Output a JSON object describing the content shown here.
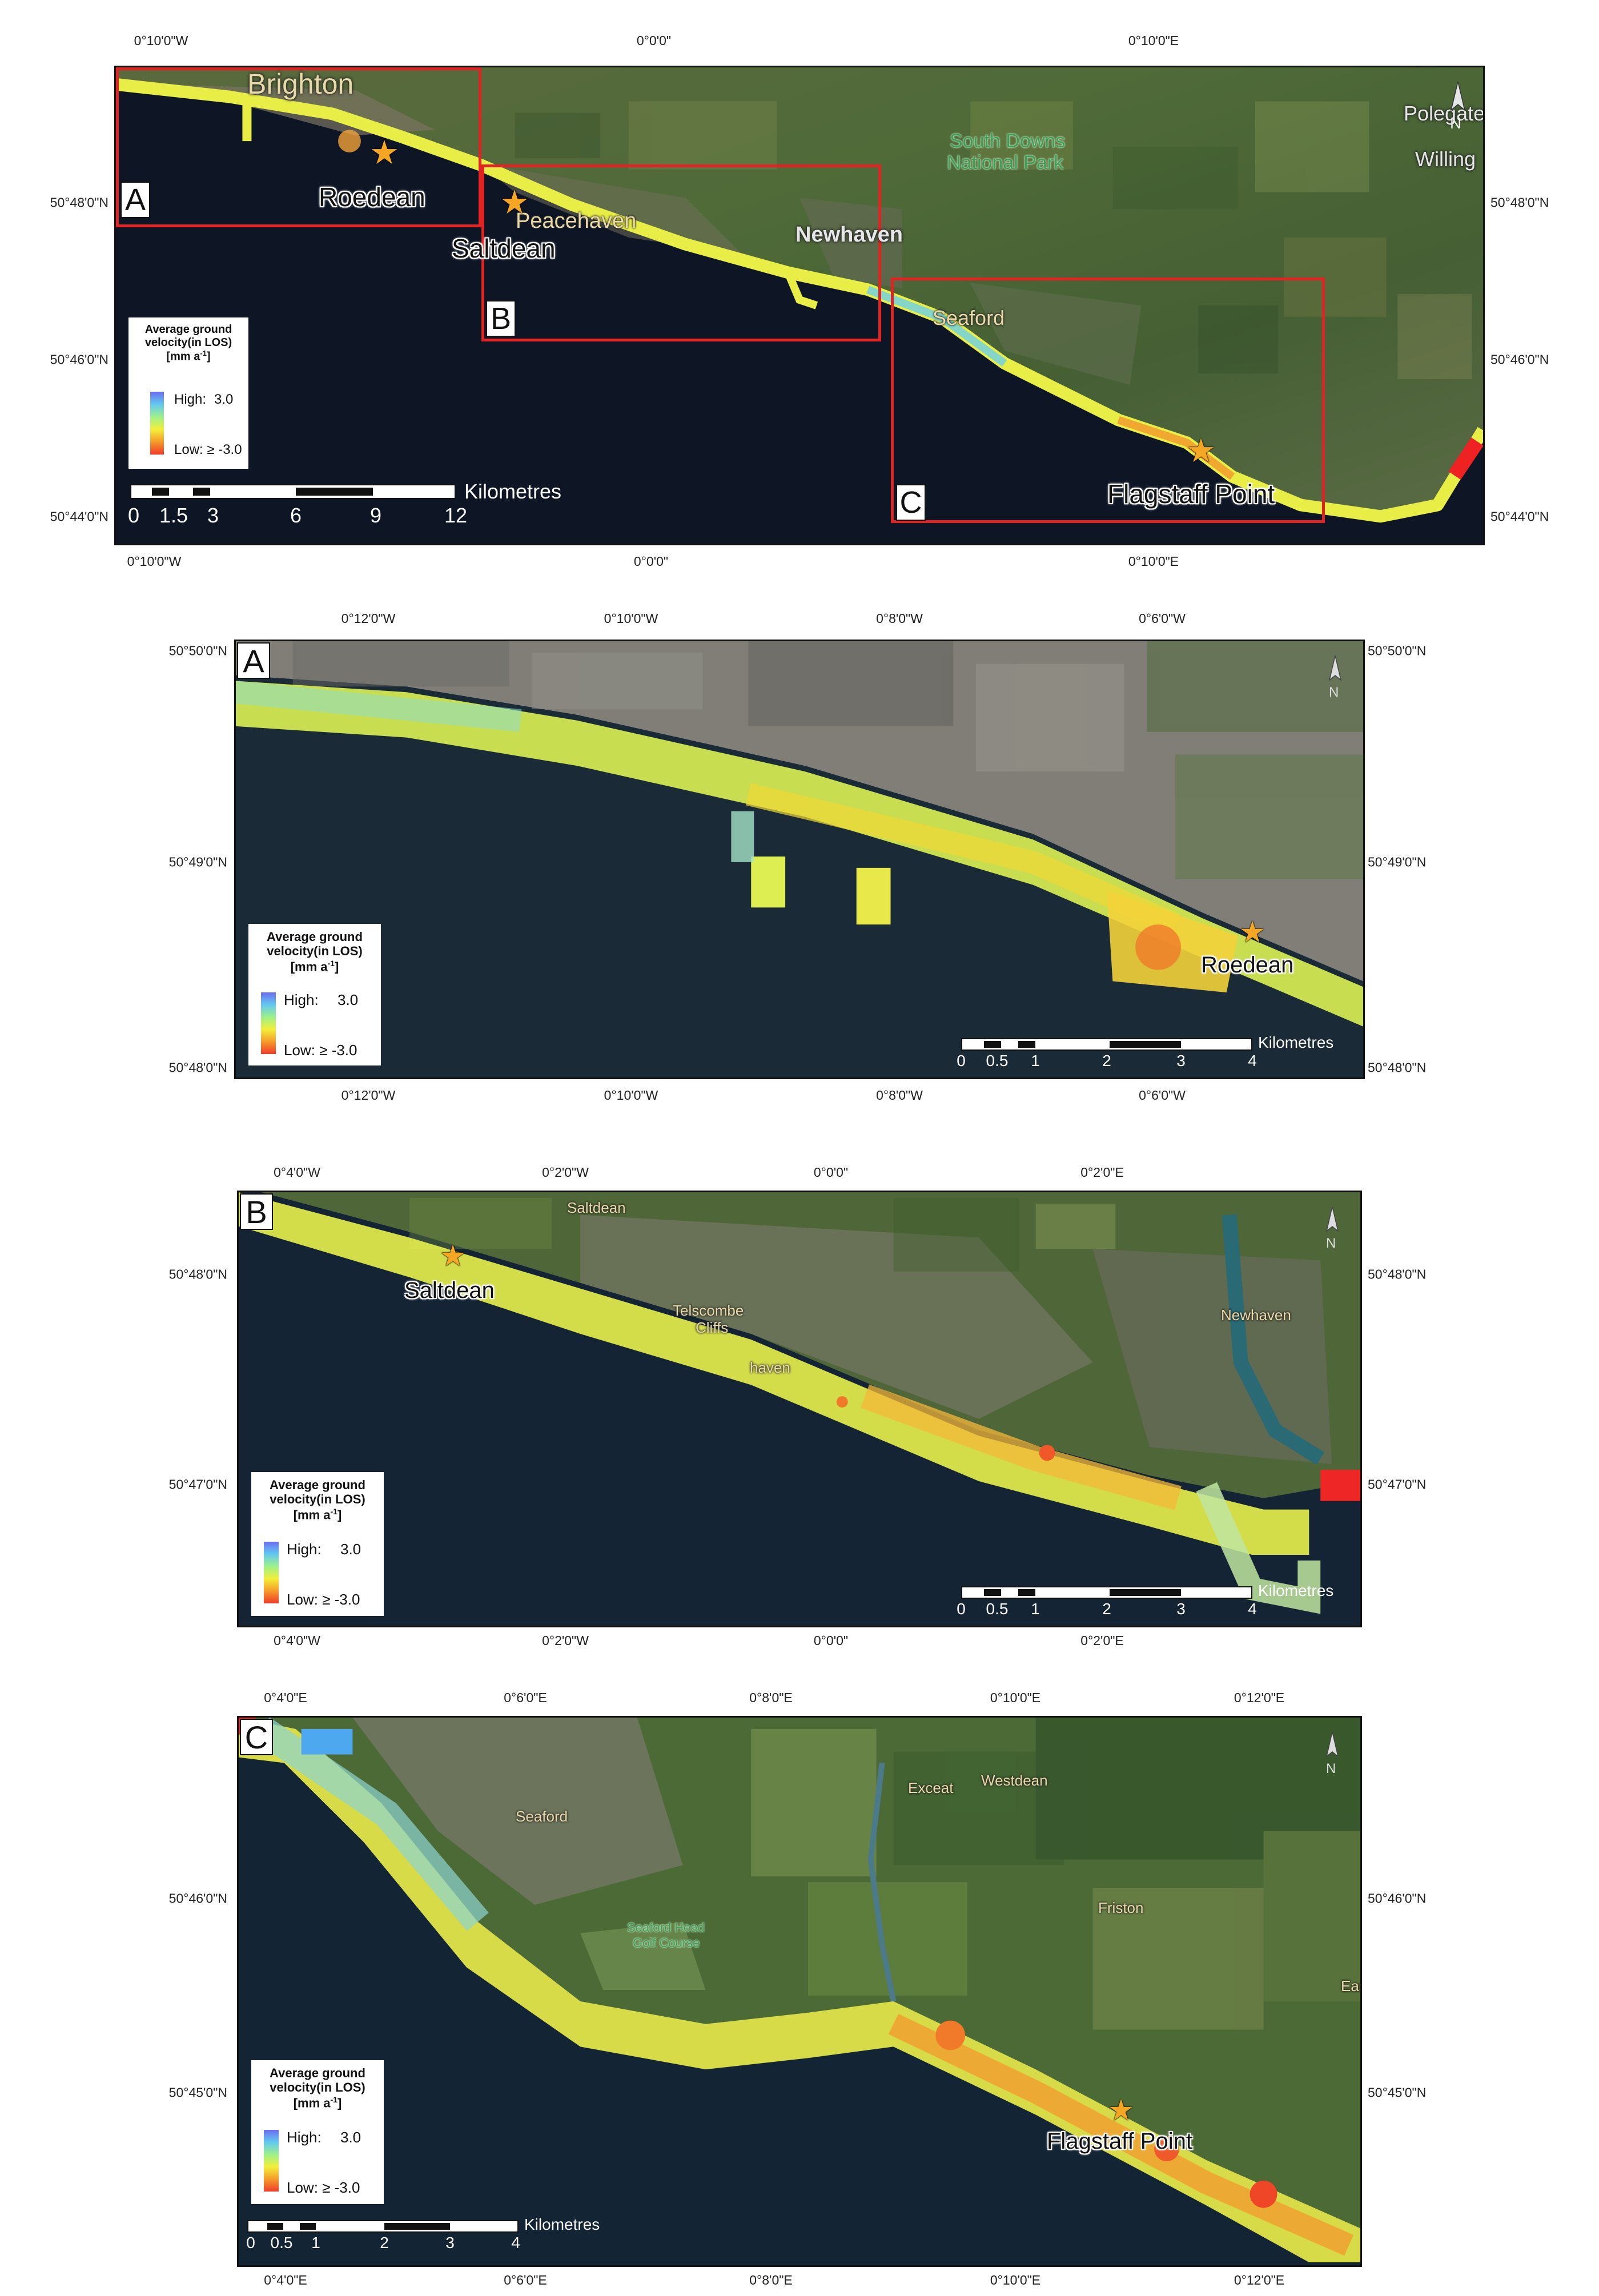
{
  "legend": {
    "title_line1": "Average ground",
    "title_line2": "velocity(in LOS)",
    "title_line3": "[mm a",
    "title_sup": "-1",
    "title_end": "]",
    "high_label": "High:",
    "high_value": "3.0",
    "low_label": "Low: ≥ -3.0",
    "ramp_colors": [
      "#6a6df0",
      "#62c9f0",
      "#9ef08a",
      "#f3ef3a",
      "#f59a2a",
      "#f03a2a"
    ]
  },
  "scale_unit": "Kilometres",
  "north_label": "N",
  "overview": {
    "top_ticks": [
      "0°10'0\"W",
      "0°0'0\"",
      "0°10'0\"E"
    ],
    "bottom_ticks": [
      "0°10'0\"W",
      "0°0'0\"",
      "0°10'0\"E"
    ],
    "left_ticks": [
      "50°48'0\"N",
      "50°46'0\"N",
      "50°44'0\"N"
    ],
    "right_ticks": [
      "50°48'0\"N",
      "50°46'0\"N",
      "50°44'0\"N"
    ],
    "scale_labels": [
      "0",
      "1.5",
      "3",
      "6",
      "9",
      "12"
    ],
    "inset_letters": [
      "A",
      "B",
      "C"
    ],
    "places": {
      "brighton": "Brighton",
      "roedean": "Roedean",
      "saltdean": "Saltdean",
      "peacehaven": "Peacehaven",
      "newhaven": "Newhaven",
      "seaford": "Seaford",
      "south_downs_1": "South Downs",
      "south_downs_2": "National Park",
      "polegate": "Polegate",
      "willing": "Willing",
      "flagstaff": "Flagstaff Point"
    }
  },
  "panel_a": {
    "letter": "A",
    "top_ticks": [
      "0°12'0\"W",
      "0°10'0\"W",
      "0°8'0\"W",
      "0°6'0\"W"
    ],
    "bottom_ticks": [
      "0°12'0\"W",
      "0°10'0\"W",
      "0°8'0\"W",
      "0°6'0\"W"
    ],
    "left_ticks": [
      "50°50'0\"N",
      "50°49'0\"N",
      "50°48'0\"N"
    ],
    "right_ticks": [
      "50°50'0\"N",
      "50°49'0\"N",
      "50°48'0\"N"
    ],
    "scale_labels": [
      "0",
      "0.5",
      "1",
      "2",
      "3",
      "4"
    ],
    "places": {
      "roedean": "Roedean"
    }
  },
  "panel_b": {
    "letter": "B",
    "top_ticks": [
      "0°4'0\"W",
      "0°2'0\"W",
      "0°0'0\"",
      "0°2'0\"E"
    ],
    "bottom_ticks": [
      "0°4'0\"W",
      "0°2'0\"W",
      "0°0'0\"",
      "0°2'0\"E"
    ],
    "left_ticks": [
      "50°48'0\"N",
      "50°47'0\"N"
    ],
    "right_ticks": [
      "50°48'0\"N",
      "50°47'0\"N"
    ],
    "scale_labels": [
      "0",
      "0.5",
      "1",
      "2",
      "3",
      "4"
    ],
    "places": {
      "saltdean_small": "Saltdean",
      "saltdean": "Saltdean",
      "telscombe_1": "Telscombe",
      "telscombe_2": "Cliffs",
      "peacehaven_part": "haven",
      "newhaven": "Newhaven"
    }
  },
  "panel_c": {
    "letter": "C",
    "top_ticks": [
      "0°4'0\"E",
      "0°6'0\"E",
      "0°8'0\"E",
      "0°10'0\"E",
      "0°12'0\"E"
    ],
    "bottom_ticks": [
      "0°4'0\"E",
      "0°6'0\"E",
      "0°8'0\"E",
      "0°10'0\"E",
      "0°12'0\"E"
    ],
    "left_ticks": [
      "50°46'0\"N",
      "50°45'0\"N"
    ],
    "right_ticks": [
      "50°46'0\"N",
      "50°45'0\"N"
    ],
    "scale_labels": [
      "0",
      "0.5",
      "1",
      "2",
      "3",
      "4"
    ],
    "places": {
      "seaford": "Seaford",
      "golf_1": "Seaford Head",
      "golf_2": "Golf Course",
      "exceat": "Exceat",
      "westdean": "Westdean",
      "friston": "Friston",
      "eastdean_part": "Eas",
      "flagstaff": "Flagstaff Point"
    }
  }
}
